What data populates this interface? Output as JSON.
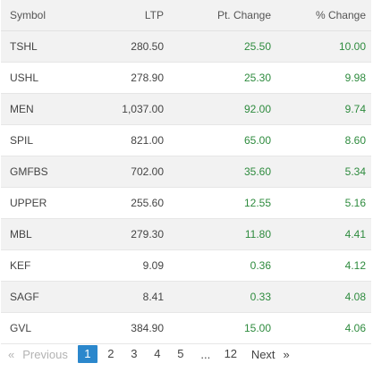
{
  "table": {
    "headers": {
      "symbol": "Symbol",
      "ltp": "LTP",
      "pt_change": "Pt. Change",
      "pct_change": "% Change"
    },
    "rows": [
      {
        "symbol": "TSHL",
        "ltp": "280.50",
        "pt_change": "25.50",
        "pct_change": "10.00"
      },
      {
        "symbol": "USHL",
        "ltp": "278.90",
        "pt_change": "25.30",
        "pct_change": "9.98"
      },
      {
        "symbol": "MEN",
        "ltp": "1,037.00",
        "pt_change": "92.00",
        "pct_change": "9.74"
      },
      {
        "symbol": "SPIL",
        "ltp": "821.00",
        "pt_change": "65.00",
        "pct_change": "8.60"
      },
      {
        "symbol": "GMFBS",
        "ltp": "702.00",
        "pt_change": "35.60",
        "pct_change": "5.34"
      },
      {
        "symbol": "UPPER",
        "ltp": "255.60",
        "pt_change": "12.55",
        "pct_change": "5.16"
      },
      {
        "symbol": "MBL",
        "ltp": "279.30",
        "pt_change": "11.80",
        "pct_change": "4.41"
      },
      {
        "symbol": "KEF",
        "ltp": "9.09",
        "pt_change": "0.36",
        "pct_change": "4.12"
      },
      {
        "symbol": "SAGF",
        "ltp": "8.41",
        "pt_change": "0.33",
        "pct_change": "4.08"
      },
      {
        "symbol": "GVL",
        "ltp": "384.90",
        "pt_change": "15.00",
        "pct_change": "4.06"
      }
    ]
  },
  "pagination": {
    "prev_arrow": "«",
    "prev_label": "Previous",
    "pages": [
      "1",
      "2",
      "3",
      "4",
      "5"
    ],
    "active_page": "1",
    "ellipsis": "...",
    "last_page": "12",
    "next_label": "Next",
    "next_arrow": "»"
  },
  "colors": {
    "positive": "#2e8b3e",
    "active_page_bg": "#2b87cc",
    "stripe": "#f2f2f2"
  }
}
